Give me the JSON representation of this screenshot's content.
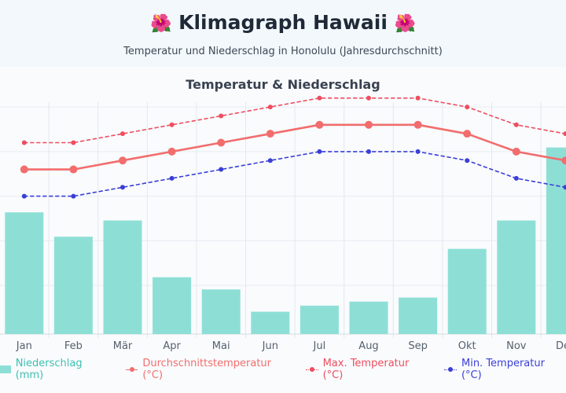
{
  "header": {
    "title_icon": "🌺",
    "title": "Klimagraph Hawaii",
    "subtitle": "Temperatur und Niederschlag in Honolulu (Jahresdurchschnitt)"
  },
  "colors": {
    "precip": "#8ddfd6",
    "avg": "#f26d6d",
    "max": "#ef4d5f",
    "min": "#3b3fd6"
  },
  "chart_data": {
    "type": "bar",
    "title": "Temperatur & Niederschlag",
    "categories": [
      "Jan",
      "Feb",
      "Mär",
      "Apr",
      "Mai",
      "Jun",
      "Jul",
      "Aug",
      "Sep",
      "Okt",
      "Nov",
      "Dez"
    ],
    "grid": true,
    "legend_position": "bottom",
    "series": [
      {
        "name": "Niederschlag (mm)",
        "type": "bar",
        "axis": "right",
        "values": [
          60,
          48,
          56,
          28,
          22,
          11,
          14,
          16,
          18,
          42,
          56,
          92
        ]
      },
      {
        "name": "Durchschnittstemperatur (°C)",
        "type": "line",
        "axis": "left",
        "style": "solid",
        "values": [
          23,
          23,
          24,
          25,
          26,
          27,
          28,
          28,
          28,
          27,
          25,
          24
        ]
      },
      {
        "name": "Max. Temperatur (°C)",
        "type": "line",
        "axis": "left",
        "style": "dotted",
        "values": [
          26,
          26,
          27,
          28,
          29,
          30,
          31,
          31,
          31,
          30,
          28,
          27
        ]
      },
      {
        "name": "Min. Temperatur (°C)",
        "type": "line",
        "axis": "left",
        "style": "dotted",
        "values": [
          20,
          20,
          21,
          22,
          23,
          24,
          25,
          25,
          25,
          24,
          22,
          21
        ]
      }
    ],
    "y_left_range": [
      0,
      35
    ],
    "y_right_range": [
      0,
      100
    ]
  }
}
